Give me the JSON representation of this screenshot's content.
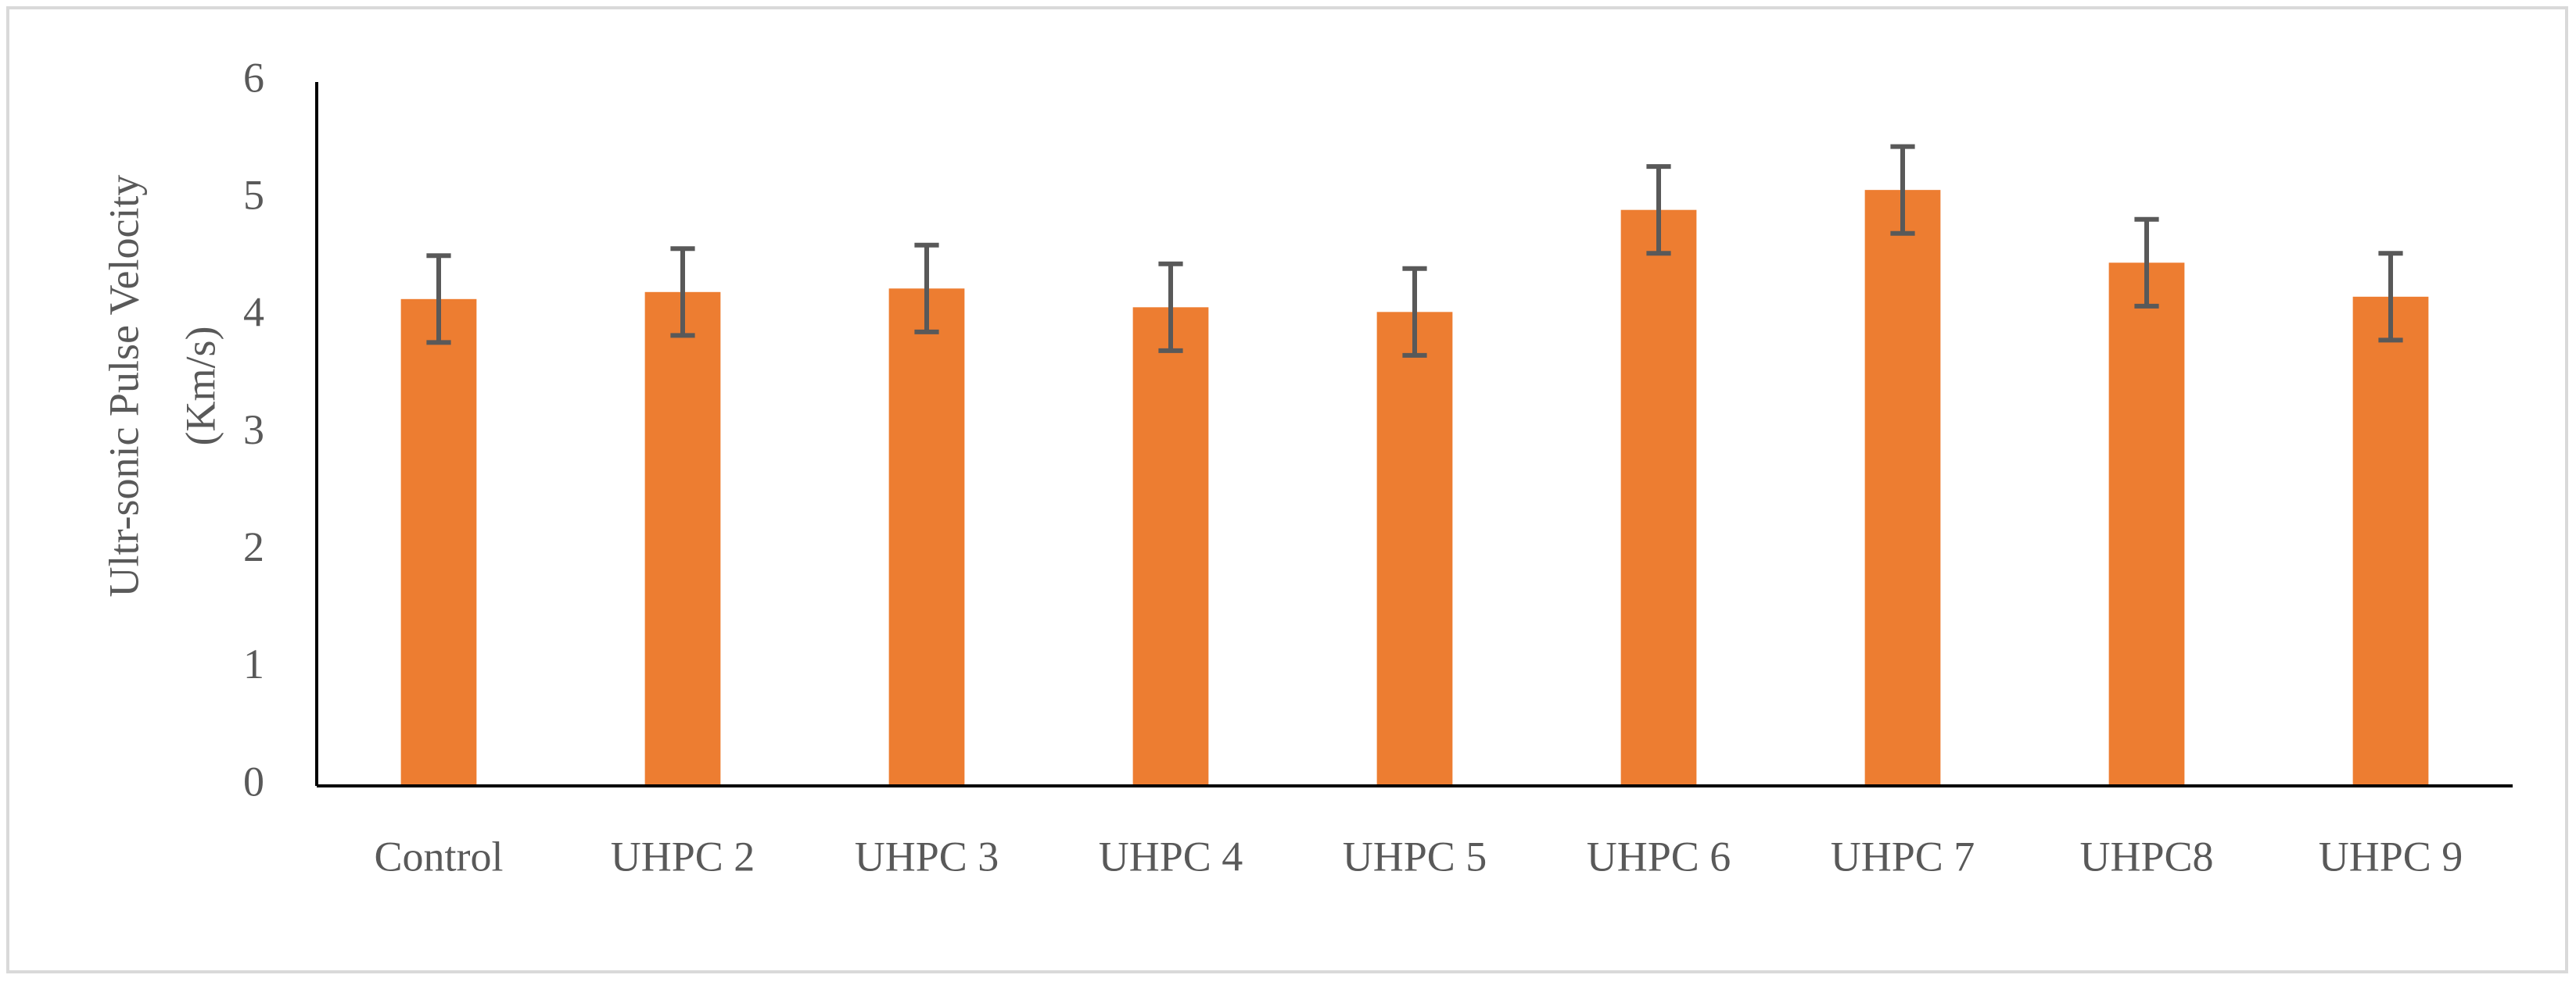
{
  "chart_data": {
    "type": "bar",
    "ylabel": [
      "Ultr-sonic Pulse Velocity",
      "(Km/s)"
    ],
    "categories": [
      "Control",
      "UHPC 2",
      "UHPC 3",
      "UHPC 4",
      "UHPC 5",
      "UHPC 6",
      "UHPC 7",
      "UHPC8",
      "UHPC 9"
    ],
    "values": [
      4.15,
      4.21,
      4.24,
      4.08,
      4.04,
      4.91,
      5.08,
      4.46,
      4.17
    ],
    "errors": [
      0.37,
      0.37,
      0.37,
      0.37,
      0.37,
      0.37,
      0.37,
      0.37,
      0.37
    ],
    "color": "#ED7D31",
    "error_color": "#595959",
    "ylim": [
      0,
      6
    ],
    "yticks": [
      0,
      1,
      2,
      3,
      4,
      5,
      6
    ],
    "grid": false
  }
}
